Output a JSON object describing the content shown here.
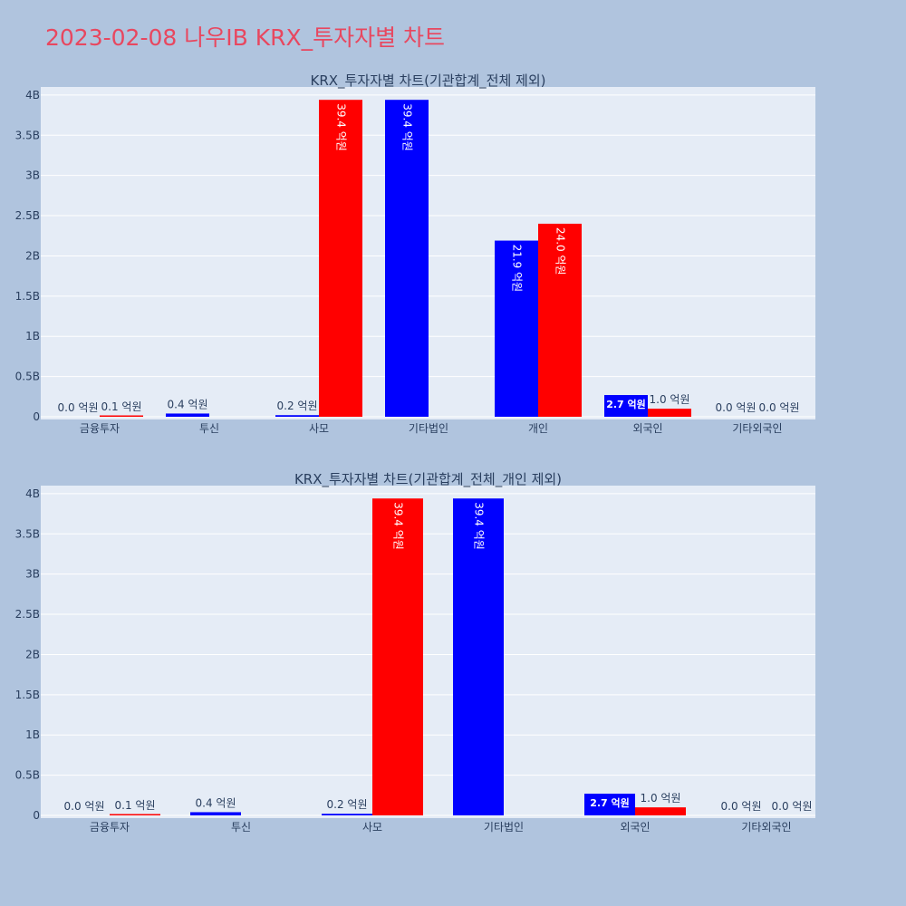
{
  "page": {
    "title": "2023-02-08 나우IB KRX_투자자별 차트"
  },
  "colors": {
    "background": "#b0c4de",
    "plot_bg": "#e5ecf6",
    "grid": "#ffffff",
    "text": "#2a3f5f",
    "title": "#e8475f",
    "series_blue": "#0000ff",
    "series_red": "#ff0000"
  },
  "chart_data": [
    {
      "type": "bar",
      "title": "KRX_투자자별 차트(기관합계_전체 제외)",
      "categories": [
        "금융투자",
        "투신",
        "사모",
        "기타법인",
        "개인",
        "외국인",
        "기타외국인"
      ],
      "series": [
        {
          "color": "#0000ff",
          "values": [
            0.0,
            0.04,
            0.02,
            3.94,
            2.19,
            0.27,
            0.0
          ],
          "labels": [
            "0.0 억원",
            "0.4 억원",
            "0.2 억원",
            "39.4 억원",
            "21.9 억원",
            "2.7 억원",
            "0.0 억원"
          ]
        },
        {
          "color": "#ff0000",
          "values": [
            0.01,
            0.0,
            3.94,
            0.0,
            2.4,
            0.1,
            0.0
          ],
          "labels": [
            "0.1 억원",
            "",
            "39.4 억원",
            "",
            "24.0 억원",
            "1.0 억원",
            "0.0 억원"
          ]
        }
      ],
      "y_ticks": [
        "0",
        "0.5B",
        "1B",
        "1.5B",
        "2B",
        "2.5B",
        "3B",
        "3.5B",
        "4B"
      ],
      "y_tick_values": [
        0,
        0.5,
        1,
        1.5,
        2,
        2.5,
        3,
        3.5,
        4
      ],
      "ylim": [
        0,
        4.1
      ],
      "grid": true
    },
    {
      "type": "bar",
      "title": "KRX_투자자별 차트(기관합계_전체_개인 제외)",
      "categories": [
        "금융투자",
        "투신",
        "사모",
        "기타법인",
        "외국인",
        "기타외국인"
      ],
      "series": [
        {
          "color": "#0000ff",
          "values": [
            0.0,
            0.04,
            0.02,
            3.94,
            0.27,
            0.0
          ],
          "labels": [
            "0.0 억원",
            "0.4 억원",
            "0.2 억원",
            "39.4 억원",
            "2.7 억원",
            "0.0 억원"
          ]
        },
        {
          "color": "#ff0000",
          "values": [
            0.01,
            0.0,
            3.94,
            0.0,
            0.1,
            0.0
          ],
          "labels": [
            "0.1 억원",
            "",
            "39.4 억원",
            "",
            "1.0 억원",
            "0.0 억원"
          ]
        }
      ],
      "y_ticks": [
        "0",
        "0.5B",
        "1B",
        "1.5B",
        "2B",
        "2.5B",
        "3B",
        "3.5B",
        "4B"
      ],
      "y_tick_values": [
        0,
        0.5,
        1,
        1.5,
        2,
        2.5,
        3,
        3.5,
        4
      ],
      "ylim": [
        0,
        4.1
      ],
      "grid": true
    }
  ]
}
